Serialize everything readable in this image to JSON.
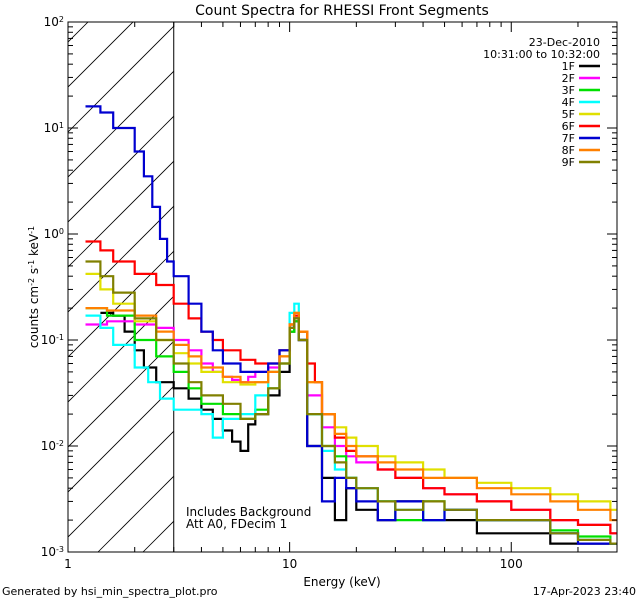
{
  "chart_data": {
    "type": "line",
    "title": "Count Spectra for RHESSI Front Segments",
    "xlabel": "Energy (keV)",
    "ylabel_parts": [
      "counts cm",
      "-2",
      " s",
      "-1",
      " keV",
      "-1"
    ],
    "x_scale": "log",
    "y_scale": "log",
    "xlim": [
      1,
      300
    ],
    "ylim": [
      0.001,
      100
    ],
    "x_ticks": [
      {
        "value": 1,
        "label": "1"
      },
      {
        "value": 10,
        "label": "10"
      },
      {
        "value": 100,
        "label": "100"
      }
    ],
    "y_ticks": [
      {
        "value": 0.001,
        "base": "10",
        "exp": "-3"
      },
      {
        "value": 0.01,
        "base": "10",
        "exp": "-2"
      },
      {
        "value": 0.1,
        "base": "10",
        "exp": "-1"
      },
      {
        "value": 1,
        "base": "10",
        "exp": "0"
      },
      {
        "value": 10,
        "base": "10",
        "exp": "1"
      },
      {
        "value": 100,
        "base": "10",
        "exp": "2"
      }
    ],
    "date": "23-Dec-2010",
    "time_range": "10:31:00 to 10:32:00",
    "hatched_region_kev": [
      1,
      3
    ],
    "annotations": [
      "Includes Background",
      "Att A0, FDecim 1"
    ],
    "series": [
      {
        "name": "1F",
        "color": "#000000",
        "points": [
          [
            1.4,
            0.18
          ],
          [
            1.6,
            0.17
          ],
          [
            1.8,
            0.12
          ],
          [
            2.0,
            0.08
          ],
          [
            2.2,
            0.055
          ],
          [
            2.5,
            0.04
          ],
          [
            3.0,
            0.035
          ],
          [
            3.5,
            0.028
          ],
          [
            4.0,
            0.022
          ],
          [
            4.5,
            0.018
          ],
          [
            5.0,
            0.014
          ],
          [
            5.5,
            0.011
          ],
          [
            6.0,
            0.009
          ],
          [
            6.5,
            0.016
          ],
          [
            7.0,
            0.02
          ],
          [
            8.0,
            0.03
          ],
          [
            9.0,
            0.05
          ],
          [
            10.0,
            0.12
          ],
          [
            10.5,
            0.15
          ],
          [
            11.0,
            0.1
          ],
          [
            12.0,
            0.01
          ],
          [
            14.0,
            0.005
          ],
          [
            16.0,
            0.002
          ],
          [
            18.0,
            0.004
          ],
          [
            20.0,
            0.0025
          ],
          [
            25.0,
            0.002
          ],
          [
            30.0,
            0.003
          ],
          [
            40.0,
            0.002
          ],
          [
            50.0,
            0.002
          ],
          [
            70.0,
            0.0015
          ],
          [
            100.0,
            0.0015
          ],
          [
            150.0,
            0.0012
          ],
          [
            200.0,
            0.0012
          ],
          [
            280.0,
            0.0012
          ]
        ]
      },
      {
        "name": "2F",
        "color": "#ff00ff",
        "points": [
          [
            1.2,
            0.14
          ],
          [
            1.5,
            0.15
          ],
          [
            2.0,
            0.14
          ],
          [
            2.5,
            0.13
          ],
          [
            3.0,
            0.1
          ],
          [
            3.5,
            0.08
          ],
          [
            4.0,
            0.06
          ],
          [
            4.5,
            0.05
          ],
          [
            5.0,
            0.045
          ],
          [
            5.5,
            0.042
          ],
          [
            6.0,
            0.04
          ],
          [
            6.5,
            0.045
          ],
          [
            7.0,
            0.05
          ],
          [
            8.0,
            0.055
          ],
          [
            9.0,
            0.08
          ],
          [
            10.0,
            0.14
          ],
          [
            10.5,
            0.16
          ],
          [
            11.0,
            0.1
          ],
          [
            12.0,
            0.03
          ],
          [
            14.0,
            0.015
          ],
          [
            16.0,
            0.01
          ],
          [
            18.0,
            0.008
          ],
          [
            20.0,
            0.007
          ],
          [
            25.0,
            0.006
          ],
          [
            30.0,
            0.005
          ],
          [
            40.0,
            0.004
          ],
          [
            50.0,
            0.0035
          ],
          [
            70.0,
            0.003
          ],
          [
            100.0,
            0.0025
          ],
          [
            150.0,
            0.002
          ],
          [
            200.0,
            0.0018
          ],
          [
            280.0,
            0.0015
          ]
        ]
      },
      {
        "name": "3F",
        "color": "#00e000",
        "points": [
          [
            1.2,
            0.2
          ],
          [
            1.5,
            0.17
          ],
          [
            2.0,
            0.1
          ],
          [
            2.5,
            0.07
          ],
          [
            3.0,
            0.05
          ],
          [
            3.5,
            0.035
          ],
          [
            4.0,
            0.025
          ],
          [
            5.0,
            0.02
          ],
          [
            6.0,
            0.018
          ],
          [
            7.0,
            0.022
          ],
          [
            8.0,
            0.035
          ],
          [
            9.0,
            0.06
          ],
          [
            10.0,
            0.12
          ],
          [
            10.5,
            0.15
          ],
          [
            11.0,
            0.1
          ],
          [
            12.0,
            0.02
          ],
          [
            14.0,
            0.01
          ],
          [
            16.0,
            0.008
          ],
          [
            18.0,
            0.005
          ],
          [
            20.0,
            0.004
          ],
          [
            25.0,
            0.003
          ],
          [
            30.0,
            0.002
          ],
          [
            40.0,
            0.003
          ],
          [
            50.0,
            0.0025
          ],
          [
            70.0,
            0.002
          ],
          [
            100.0,
            0.002
          ],
          [
            150.0,
            0.0016
          ],
          [
            200.0,
            0.0014
          ],
          [
            280.0,
            0.0012
          ]
        ]
      },
      {
        "name": "4F",
        "color": "#00ffff",
        "points": [
          [
            1.2,
            0.17
          ],
          [
            1.4,
            0.13
          ],
          [
            1.6,
            0.09
          ],
          [
            2.0,
            0.055
          ],
          [
            2.3,
            0.04
          ],
          [
            2.6,
            0.028
          ],
          [
            3.0,
            0.022
          ],
          [
            4.0,
            0.02
          ],
          [
            4.5,
            0.012
          ],
          [
            5.0,
            0.018
          ],
          [
            6.0,
            0.02
          ],
          [
            7.0,
            0.03
          ],
          [
            8.0,
            0.05
          ],
          [
            9.0,
            0.08
          ],
          [
            10.0,
            0.18
          ],
          [
            10.5,
            0.22
          ],
          [
            11.0,
            0.12
          ],
          [
            12.0,
            0.02
          ],
          [
            14.0,
            0.009
          ],
          [
            16.0,
            0.006
          ],
          [
            18.0,
            0.005
          ],
          [
            20.0,
            0.004
          ],
          [
            25.0,
            0.003
          ],
          [
            30.0,
            0.0025
          ],
          [
            40.0,
            0.002
          ],
          [
            50.0,
            0.0025
          ],
          [
            70.0,
            0.002
          ],
          [
            100.0,
            0.002
          ],
          [
            150.0,
            0.0015
          ],
          [
            200.0,
            0.0013
          ],
          [
            280.0,
            0.0012
          ]
        ]
      },
      {
        "name": "5F",
        "color": "#e0e000",
        "points": [
          [
            1.2,
            0.42
          ],
          [
            1.4,
            0.3
          ],
          [
            1.6,
            0.22
          ],
          [
            2.0,
            0.15
          ],
          [
            2.5,
            0.1
          ],
          [
            3.0,
            0.075
          ],
          [
            3.5,
            0.06
          ],
          [
            4.0,
            0.05
          ],
          [
            5.0,
            0.04
          ],
          [
            6.0,
            0.038
          ],
          [
            7.0,
            0.04
          ],
          [
            8.0,
            0.05
          ],
          [
            9.0,
            0.07
          ],
          [
            10.0,
            0.14
          ],
          [
            10.5,
            0.18
          ],
          [
            11.0,
            0.12
          ],
          [
            12.0,
            0.04
          ],
          [
            14.0,
            0.02
          ],
          [
            16.0,
            0.015
          ],
          [
            18.0,
            0.012
          ],
          [
            20.0,
            0.01
          ],
          [
            25.0,
            0.008
          ],
          [
            30.0,
            0.007
          ],
          [
            40.0,
            0.006
          ],
          [
            50.0,
            0.005
          ],
          [
            70.0,
            0.0045
          ],
          [
            100.0,
            0.004
          ],
          [
            150.0,
            0.0035
          ],
          [
            200.0,
            0.003
          ],
          [
            280.0,
            0.0025
          ]
        ]
      },
      {
        "name": "6F",
        "color": "#ff0000",
        "points": [
          [
            1.2,
            0.85
          ],
          [
            1.4,
            0.7
          ],
          [
            1.6,
            0.55
          ],
          [
            2.0,
            0.42
          ],
          [
            2.5,
            0.33
          ],
          [
            3.0,
            0.22
          ],
          [
            3.5,
            0.16
          ],
          [
            4.0,
            0.12
          ],
          [
            4.5,
            0.1
          ],
          [
            5.0,
            0.08
          ],
          [
            6.0,
            0.065
          ],
          [
            7.0,
            0.06
          ],
          [
            8.0,
            0.06
          ],
          [
            9.0,
            0.08
          ],
          [
            10.0,
            0.14
          ],
          [
            10.5,
            0.17
          ],
          [
            11.0,
            0.12
          ],
          [
            12.0,
            0.06
          ],
          [
            13.0,
            0.04
          ],
          [
            14.0,
            0.02
          ],
          [
            16.0,
            0.012
          ],
          [
            18.0,
            0.009
          ],
          [
            20.0,
            0.008
          ],
          [
            25.0,
            0.006
          ],
          [
            30.0,
            0.005
          ],
          [
            40.0,
            0.004
          ],
          [
            50.0,
            0.0035
          ],
          [
            70.0,
            0.003
          ],
          [
            100.0,
            0.0025
          ],
          [
            150.0,
            0.002
          ],
          [
            200.0,
            0.0018
          ],
          [
            280.0,
            0.0015
          ]
        ]
      },
      {
        "name": "7F",
        "color": "#0000d0",
        "points": [
          [
            1.2,
            16.0
          ],
          [
            1.4,
            14.0
          ],
          [
            1.6,
            10.0
          ],
          [
            2.0,
            6.0
          ],
          [
            2.2,
            3.5
          ],
          [
            2.4,
            1.8
          ],
          [
            2.6,
            0.9
          ],
          [
            2.8,
            0.55
          ],
          [
            3.0,
            0.4
          ],
          [
            3.5,
            0.22
          ],
          [
            4.0,
            0.12
          ],
          [
            4.5,
            0.08
          ],
          [
            5.0,
            0.06
          ],
          [
            6.0,
            0.05
          ],
          [
            7.0,
            0.05
          ],
          [
            8.0,
            0.06
          ],
          [
            9.0,
            0.08
          ],
          [
            10.0,
            0.13
          ],
          [
            10.5,
            0.16
          ],
          [
            11.0,
            0.1
          ],
          [
            12.0,
            0.01
          ],
          [
            14.0,
            0.003
          ],
          [
            16.0,
            0.005
          ],
          [
            18.0,
            0.004
          ],
          [
            20.0,
            0.003
          ],
          [
            25.0,
            0.002
          ],
          [
            30.0,
            0.003
          ],
          [
            40.0,
            0.002
          ],
          [
            50.0,
            0.0025
          ],
          [
            70.0,
            0.002
          ],
          [
            100.0,
            0.002
          ],
          [
            150.0,
            0.0015
          ],
          [
            200.0,
            0.0012
          ],
          [
            280.0,
            0.0012
          ]
        ]
      },
      {
        "name": "8F",
        "color": "#ff8000",
        "points": [
          [
            1.2,
            0.2
          ],
          [
            1.5,
            0.19
          ],
          [
            2.0,
            0.17
          ],
          [
            2.5,
            0.12
          ],
          [
            3.0,
            0.09
          ],
          [
            3.5,
            0.07
          ],
          [
            4.0,
            0.055
          ],
          [
            5.0,
            0.045
          ],
          [
            6.0,
            0.04
          ],
          [
            7.0,
            0.04
          ],
          [
            8.0,
            0.05
          ],
          [
            9.0,
            0.07
          ],
          [
            10.0,
            0.14
          ],
          [
            10.5,
            0.18
          ],
          [
            11.0,
            0.12
          ],
          [
            12.0,
            0.04
          ],
          [
            14.0,
            0.02
          ],
          [
            16.0,
            0.013
          ],
          [
            18.0,
            0.01
          ],
          [
            20.0,
            0.008
          ],
          [
            25.0,
            0.007
          ],
          [
            30.0,
            0.006
          ],
          [
            40.0,
            0.005
          ],
          [
            50.0,
            0.005
          ],
          [
            70.0,
            0.004
          ],
          [
            100.0,
            0.0035
          ],
          [
            150.0,
            0.003
          ],
          [
            200.0,
            0.0025
          ],
          [
            280.0,
            0.002
          ]
        ]
      },
      {
        "name": "9F",
        "color": "#808000",
        "points": [
          [
            1.2,
            0.55
          ],
          [
            1.4,
            0.4
          ],
          [
            1.6,
            0.28
          ],
          [
            2.0,
            0.16
          ],
          [
            2.5,
            0.1
          ],
          [
            3.0,
            0.06
          ],
          [
            3.5,
            0.04
          ],
          [
            4.0,
            0.03
          ],
          [
            5.0,
            0.025
          ],
          [
            6.0,
            0.018
          ],
          [
            7.0,
            0.02
          ],
          [
            8.0,
            0.035
          ],
          [
            9.0,
            0.06
          ],
          [
            10.0,
            0.13
          ],
          [
            10.5,
            0.16
          ],
          [
            11.0,
            0.1
          ],
          [
            12.0,
            0.02
          ],
          [
            14.0,
            0.01
          ],
          [
            16.0,
            0.007
          ],
          [
            18.0,
            0.005
          ],
          [
            20.0,
            0.004
          ],
          [
            25.0,
            0.003
          ],
          [
            30.0,
            0.0025
          ],
          [
            40.0,
            0.003
          ],
          [
            50.0,
            0.0025
          ],
          [
            70.0,
            0.002
          ],
          [
            100.0,
            0.002
          ],
          [
            150.0,
            0.0015
          ],
          [
            200.0,
            0.0013
          ],
          [
            280.0,
            0.0012
          ]
        ]
      }
    ]
  },
  "footer": {
    "generated_by": "Generated by hsi_min_spectra_plot.pro",
    "timestamp": "17-Apr-2023 23:40"
  }
}
